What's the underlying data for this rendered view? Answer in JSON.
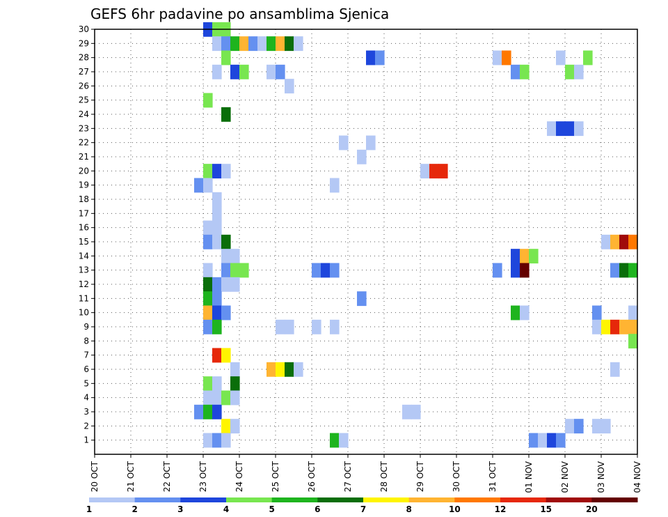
{
  "chart_data": {
    "type": "heatmap",
    "title": "GEFS 6hr padavine po ansamblima Sjenica",
    "xlabel": "",
    "ylabel": "",
    "x_tick_labels": [
      "20 OCT",
      "21 OCT",
      "22 OCT",
      "23 OCT",
      "24 OCT",
      "25 OCT",
      "26 OCT",
      "27 OCT",
      "28 OCT",
      "29 OCT",
      "30 OCT",
      "31 OCT",
      "01 NOV",
      "02 NOV",
      "03 NOV",
      "04 NOV"
    ],
    "x_range_days": [
      0,
      15
    ],
    "y_range": [
      0,
      30
    ],
    "y_tick_labels": [
      "1",
      "2",
      "3",
      "4",
      "5",
      "6",
      "7",
      "8",
      "9",
      "10",
      "11",
      "12",
      "13",
      "14",
      "15",
      "16",
      "17",
      "18",
      "19",
      "20",
      "21",
      "22",
      "23",
      "24",
      "25",
      "26",
      "27",
      "28",
      "29",
      "30"
    ],
    "grid": true,
    "cell_hours": 6,
    "levels": [
      "1",
      "2",
      "3",
      "4",
      "5",
      "6",
      "7",
      "8",
      "10",
      "12",
      "15",
      "20"
    ],
    "level_colors": [
      "#b4c8f5",
      "#6490f0",
      "#1e46dc",
      "#78e650",
      "#1eb41e",
      "#0a6e0a",
      "#fff500",
      "#ffb432",
      "#ff7800",
      "#e6280a",
      "#a00a0a",
      "#640000"
    ],
    "cells": [
      {
        "m": 30,
        "d": 3.0,
        "c": 2
      },
      {
        "m": 30,
        "d": 3.25,
        "c": 3
      },
      {
        "m": 30,
        "d": 3.5,
        "c": 3
      },
      {
        "m": 29,
        "d": 3.25,
        "c": 0
      },
      {
        "m": 29,
        "d": 3.5,
        "c": 1
      },
      {
        "m": 29,
        "d": 3.75,
        "c": 4
      },
      {
        "m": 29,
        "d": 4.0,
        "c": 7
      },
      {
        "m": 29,
        "d": 4.25,
        "c": 1
      },
      {
        "m": 29,
        "d": 4.5,
        "c": 0
      },
      {
        "m": 29,
        "d": 4.75,
        "c": 4
      },
      {
        "m": 29,
        "d": 5.0,
        "c": 7
      },
      {
        "m": 29,
        "d": 5.25,
        "c": 5
      },
      {
        "m": 29,
        "d": 5.5,
        "c": 0
      },
      {
        "m": 28,
        "d": 3.5,
        "c": 3
      },
      {
        "m": 28,
        "d": 7.5,
        "c": 2
      },
      {
        "m": 28,
        "d": 7.75,
        "c": 1
      },
      {
        "m": 28,
        "d": 11.0,
        "c": 0
      },
      {
        "m": 28,
        "d": 11.25,
        "c": 8
      },
      {
        "m": 28,
        "d": 12.75,
        "c": 0
      },
      {
        "m": 28,
        "d": 13.5,
        "c": 3
      },
      {
        "m": 27,
        "d": 3.25,
        "c": 0
      },
      {
        "m": 27,
        "d": 3.75,
        "c": 2
      },
      {
        "m": 27,
        "d": 4.0,
        "c": 3
      },
      {
        "m": 27,
        "d": 4.75,
        "c": 0
      },
      {
        "m": 27,
        "d": 5.0,
        "c": 1
      },
      {
        "m": 27,
        "d": 11.5,
        "c": 1
      },
      {
        "m": 27,
        "d": 11.75,
        "c": 3
      },
      {
        "m": 27,
        "d": 13.0,
        "c": 3
      },
      {
        "m": 27,
        "d": 13.25,
        "c": 0
      },
      {
        "m": 26,
        "d": 5.25,
        "c": 0
      },
      {
        "m": 25,
        "d": 3.0,
        "c": 3
      },
      {
        "m": 24,
        "d": 3.5,
        "c": 5
      },
      {
        "m": 23,
        "d": 12.5,
        "c": 0
      },
      {
        "m": 23,
        "d": 12.75,
        "c": 2
      },
      {
        "m": 23,
        "d": 13.0,
        "c": 2
      },
      {
        "m": 23,
        "d": 13.25,
        "c": 0
      },
      {
        "m": 22,
        "d": 6.75,
        "c": 0
      },
      {
        "m": 22,
        "d": 7.5,
        "c": 0
      },
      {
        "m": 21,
        "d": 7.25,
        "c": 0
      },
      {
        "m": 20,
        "d": 3.0,
        "c": 3
      },
      {
        "m": 20,
        "d": 3.25,
        "c": 2
      },
      {
        "m": 20,
        "d": 3.5,
        "c": 0
      },
      {
        "m": 20,
        "d": 9.0,
        "c": 0
      },
      {
        "m": 20,
        "d": 9.25,
        "c": 9
      },
      {
        "m": 20,
        "d": 9.5,
        "c": 9
      },
      {
        "m": 19,
        "d": 2.75,
        "c": 1
      },
      {
        "m": 19,
        "d": 3.0,
        "c": 0
      },
      {
        "m": 19,
        "d": 6.5,
        "c": 0
      },
      {
        "m": 18,
        "d": 3.25,
        "c": 0
      },
      {
        "m": 17,
        "d": 3.25,
        "c": 0
      },
      {
        "m": 16,
        "d": 3.0,
        "c": 0
      },
      {
        "m": 16,
        "d": 3.25,
        "c": 0
      },
      {
        "m": 15,
        "d": 3.0,
        "c": 1
      },
      {
        "m": 15,
        "d": 3.25,
        "c": 0
      },
      {
        "m": 15,
        "d": 3.5,
        "c": 5
      },
      {
        "m": 15,
        "d": 14.0,
        "c": 0
      },
      {
        "m": 15,
        "d": 14.25,
        "c": 7
      },
      {
        "m": 15,
        "d": 14.5,
        "c": 10
      },
      {
        "m": 15,
        "d": 14.75,
        "c": 8
      },
      {
        "m": 14,
        "d": 3.5,
        "c": 0
      },
      {
        "m": 14,
        "d": 3.75,
        "c": 0
      },
      {
        "m": 14,
        "d": 11.5,
        "c": 2
      },
      {
        "m": 14,
        "d": 11.75,
        "c": 7
      },
      {
        "m": 14,
        "d": 12.0,
        "c": 3
      },
      {
        "m": 13,
        "d": 3.0,
        "c": 0
      },
      {
        "m": 13,
        "d": 3.5,
        "c": 1
      },
      {
        "m": 13,
        "d": 3.75,
        "c": 3
      },
      {
        "m": 13,
        "d": 4.0,
        "c": 3
      },
      {
        "m": 13,
        "d": 6.0,
        "c": 1
      },
      {
        "m": 13,
        "d": 6.25,
        "c": 2
      },
      {
        "m": 13,
        "d": 6.5,
        "c": 1
      },
      {
        "m": 13,
        "d": 11.0,
        "c": 1
      },
      {
        "m": 13,
        "d": 11.5,
        "c": 2
      },
      {
        "m": 13,
        "d": 11.75,
        "c": 11
      },
      {
        "m": 13,
        "d": 14.25,
        "c": 1
      },
      {
        "m": 13,
        "d": 14.5,
        "c": 5
      },
      {
        "m": 13,
        "d": 14.75,
        "c": 4
      },
      {
        "m": 12,
        "d": 3.0,
        "c": 5
      },
      {
        "m": 12,
        "d": 3.25,
        "c": 1
      },
      {
        "m": 12,
        "d": 3.5,
        "c": 0
      },
      {
        "m": 12,
        "d": 3.75,
        "c": 0
      },
      {
        "m": 11,
        "d": 3.0,
        "c": 4
      },
      {
        "m": 11,
        "d": 3.25,
        "c": 1
      },
      {
        "m": 11,
        "d": 7.25,
        "c": 1
      },
      {
        "m": 10,
        "d": 3.0,
        "c": 7
      },
      {
        "m": 10,
        "d": 3.25,
        "c": 2
      },
      {
        "m": 10,
        "d": 3.5,
        "c": 1
      },
      {
        "m": 10,
        "d": 11.5,
        "c": 4
      },
      {
        "m": 10,
        "d": 11.75,
        "c": 0
      },
      {
        "m": 10,
        "d": 13.75,
        "c": 1
      },
      {
        "m": 10,
        "d": 14.75,
        "c": 0
      },
      {
        "m": 9,
        "d": 3.0,
        "c": 1
      },
      {
        "m": 9,
        "d": 3.25,
        "c": 4
      },
      {
        "m": 9,
        "d": 5.0,
        "c": 0
      },
      {
        "m": 9,
        "d": 5.25,
        "c": 0
      },
      {
        "m": 9,
        "d": 6.0,
        "c": 0
      },
      {
        "m": 9,
        "d": 6.5,
        "c": 0
      },
      {
        "m": 9,
        "d": 13.75,
        "c": 0
      },
      {
        "m": 9,
        "d": 14.0,
        "c": 6
      },
      {
        "m": 9,
        "d": 14.25,
        "c": 9
      },
      {
        "m": 9,
        "d": 14.5,
        "c": 7
      },
      {
        "m": 9,
        "d": 14.75,
        "c": 7
      },
      {
        "m": 8,
        "d": 14.75,
        "c": 3
      },
      {
        "m": 7,
        "d": 3.25,
        "c": 9
      },
      {
        "m": 7,
        "d": 3.5,
        "c": 6
      },
      {
        "m": 6,
        "d": 3.75,
        "c": 0
      },
      {
        "m": 6,
        "d": 4.75,
        "c": 7
      },
      {
        "m": 6,
        "d": 5.0,
        "c": 6
      },
      {
        "m": 6,
        "d": 5.25,
        "c": 5
      },
      {
        "m": 6,
        "d": 5.5,
        "c": 0
      },
      {
        "m": 6,
        "d": 14.25,
        "c": 0
      },
      {
        "m": 5,
        "d": 3.0,
        "c": 3
      },
      {
        "m": 5,
        "d": 3.25,
        "c": 0
      },
      {
        "m": 5,
        "d": 3.75,
        "c": 5
      },
      {
        "m": 4,
        "d": 3.0,
        "c": 0
      },
      {
        "m": 4,
        "d": 3.25,
        "c": 0
      },
      {
        "m": 4,
        "d": 3.5,
        "c": 3
      },
      {
        "m": 4,
        "d": 3.75,
        "c": 0
      },
      {
        "m": 3,
        "d": 2.75,
        "c": 1
      },
      {
        "m": 3,
        "d": 3.0,
        "c": 4
      },
      {
        "m": 3,
        "d": 3.25,
        "c": 2
      },
      {
        "m": 3,
        "d": 8.5,
        "c": 0
      },
      {
        "m": 3,
        "d": 8.75,
        "c": 0
      },
      {
        "m": 2,
        "d": 3.5,
        "c": 6
      },
      {
        "m": 2,
        "d": 3.75,
        "c": 0
      },
      {
        "m": 2,
        "d": 13.0,
        "c": 0
      },
      {
        "m": 2,
        "d": 13.25,
        "c": 1
      },
      {
        "m": 2,
        "d": 13.75,
        "c": 0
      },
      {
        "m": 2,
        "d": 14.0,
        "c": 0
      },
      {
        "m": 1,
        "d": 3.0,
        "c": 0
      },
      {
        "m": 1,
        "d": 3.25,
        "c": 1
      },
      {
        "m": 1,
        "d": 3.5,
        "c": 0
      },
      {
        "m": 1,
        "d": 6.5,
        "c": 4
      },
      {
        "m": 1,
        "d": 6.75,
        "c": 0
      },
      {
        "m": 1,
        "d": 12.0,
        "c": 1
      },
      {
        "m": 1,
        "d": 12.25,
        "c": 0
      },
      {
        "m": 1,
        "d": 12.5,
        "c": 2
      },
      {
        "m": 1,
        "d": 12.75,
        "c": 1
      }
    ]
  }
}
